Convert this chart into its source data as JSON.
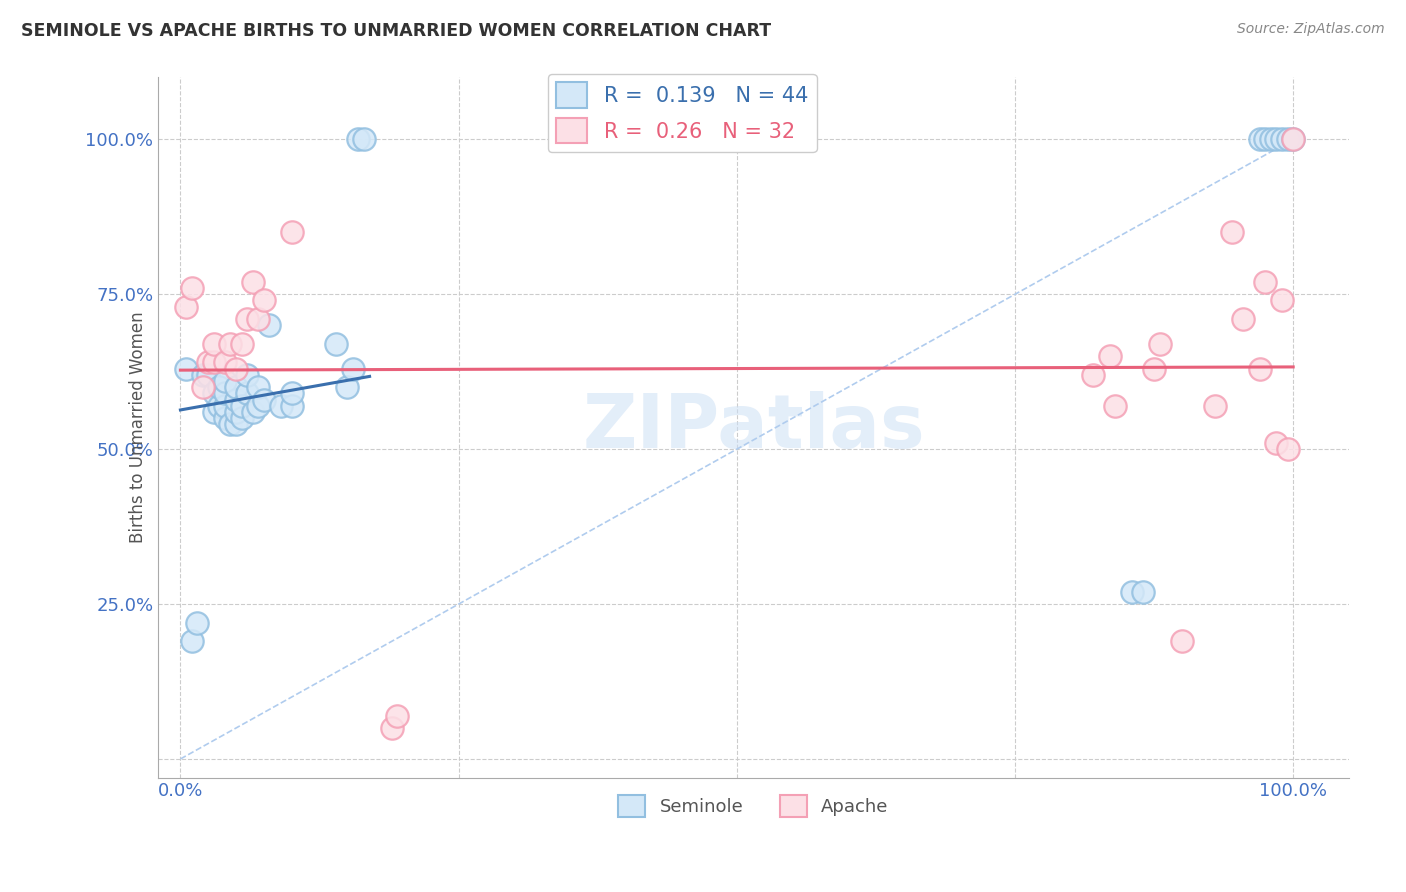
{
  "title": "SEMINOLE VS APACHE BIRTHS TO UNMARRIED WOMEN CORRELATION CHART",
  "source": "Source: ZipAtlas.com",
  "ylabel": "Births to Unmarried Women",
  "watermark": "ZIPatlas",
  "seminole_R": 0.139,
  "seminole_N": 44,
  "apache_R": 0.26,
  "apache_N": 32,
  "seminole_edge_color": "#92bfe0",
  "apache_edge_color": "#f4a0b5",
  "seminole_fill_color": "#d4e8f8",
  "apache_fill_color": "#fce0e6",
  "seminole_line_color": "#3a6fad",
  "apache_line_color": "#e8607a",
  "diagonal_color": "#b0ccee",
  "grid_color": "#cccccc",
  "axis_label_color": "#4472c4",
  "title_color": "#333333",
  "source_color": "#888888",
  "watermark_color": "#cce0f5",
  "seminole_x": [
    0.005,
    0.01,
    0.015,
    0.02,
    0.025,
    0.03,
    0.03,
    0.035,
    0.035,
    0.04,
    0.04,
    0.04,
    0.04,
    0.045,
    0.05,
    0.05,
    0.05,
    0.05,
    0.055,
    0.055,
    0.06,
    0.06,
    0.065,
    0.07,
    0.07,
    0.075,
    0.08,
    0.09,
    0.1,
    0.1,
    0.14,
    0.15,
    0.155,
    0.16,
    0.165,
    0.855,
    0.865,
    0.97,
    0.975,
    0.98,
    0.985,
    0.99,
    0.995,
    1.0
  ],
  "seminole_y": [
    0.63,
    0.19,
    0.22,
    0.62,
    0.62,
    0.56,
    0.59,
    0.57,
    0.6,
    0.55,
    0.57,
    0.59,
    0.61,
    0.54,
    0.54,
    0.56,
    0.58,
    0.6,
    0.55,
    0.57,
    0.59,
    0.62,
    0.56,
    0.57,
    0.6,
    0.58,
    0.7,
    0.57,
    0.57,
    0.59,
    0.67,
    0.6,
    0.63,
    1.0,
    1.0,
    0.27,
    0.27,
    1.0,
    1.0,
    1.0,
    1.0,
    1.0,
    1.0,
    1.0
  ],
  "apache_x": [
    0.005,
    0.01,
    0.02,
    0.025,
    0.03,
    0.03,
    0.04,
    0.045,
    0.05,
    0.055,
    0.06,
    0.065,
    0.07,
    0.075,
    0.1,
    0.19,
    0.195,
    0.82,
    0.835,
    0.84,
    0.875,
    0.88,
    0.9,
    0.93,
    0.945,
    0.955,
    0.97,
    0.975,
    0.985,
    0.99,
    0.995,
    1.0
  ],
  "apache_y": [
    0.73,
    0.76,
    0.6,
    0.64,
    0.64,
    0.67,
    0.64,
    0.67,
    0.63,
    0.67,
    0.71,
    0.77,
    0.71,
    0.74,
    0.85,
    0.05,
    0.07,
    0.62,
    0.65,
    0.57,
    0.63,
    0.67,
    0.19,
    0.57,
    0.85,
    0.71,
    0.63,
    0.77,
    0.51,
    0.74,
    0.5,
    1.0
  ],
  "figsize": [
    14.06,
    8.92
  ],
  "dpi": 100,
  "xlim": [
    -0.02,
    1.05
  ],
  "ylim": [
    -0.03,
    1.1
  ],
  "x_ticks": [
    0.0,
    0.25,
    0.5,
    0.75,
    1.0
  ],
  "x_tick_labels": [
    "0.0%",
    "",
    "",
    "",
    "100.0%"
  ],
  "y_ticks": [
    0.0,
    0.25,
    0.5,
    0.75,
    1.0
  ],
  "y_tick_labels_right": [
    "",
    "25.0%",
    "50.0%",
    "75.0%",
    "100.0%"
  ]
}
